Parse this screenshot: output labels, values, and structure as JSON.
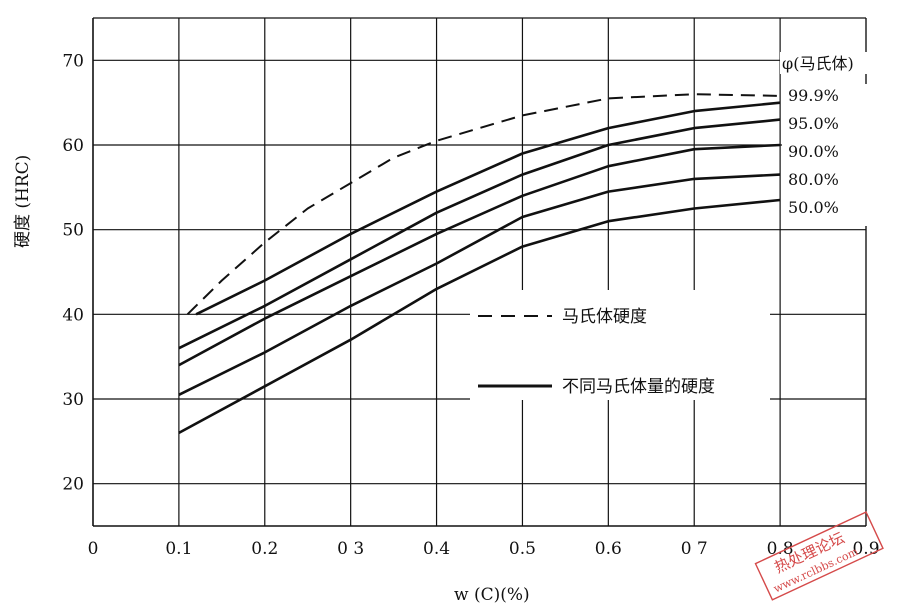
{
  "chart_data": {
    "type": "line",
    "xlabel": "w (C)(%)",
    "ylabel": "硬度 (HRC)",
    "xlim": [
      0,
      0.9
    ],
    "ylim": [
      15,
      75
    ],
    "xticks": [
      "0",
      "0.1",
      "0.2",
      "0 3",
      "0.4",
      "0.5",
      "0.6",
      "0 7",
      "0.8",
      "0.9"
    ],
    "yticks": [
      "20",
      "30",
      "40",
      "50",
      "60",
      "70"
    ],
    "grid": true,
    "legend_title": "φ(马氏体)",
    "legend": [
      {
        "label": "马氏体硬度",
        "style": "dashed"
      },
      {
        "label": "不同马氏体量的硬度",
        "style": "solid"
      }
    ],
    "series": [
      {
        "name": "99.9%",
        "style": "dashed",
        "x": [
          0.11,
          0.15,
          0.2,
          0.25,
          0.3,
          0.35,
          0.4,
          0.5,
          0.6,
          0.7,
          0.8
        ],
        "y": [
          40,
          44,
          48.5,
          52.5,
          55.5,
          58.5,
          60.5,
          63.5,
          65.5,
          66,
          65.8
        ]
      },
      {
        "name": "95.0%",
        "style": "solid",
        "x": [
          0.12,
          0.2,
          0.3,
          0.4,
          0.5,
          0.6,
          0.7,
          0.8
        ],
        "y": [
          40,
          44,
          49.5,
          54.5,
          59,
          62,
          64,
          65
        ]
      },
      {
        "name": "90.0%",
        "style": "solid",
        "x": [
          0.1,
          0.2,
          0.3,
          0.4,
          0.5,
          0.6,
          0.7,
          0.8
        ],
        "y": [
          36,
          41,
          46.5,
          52,
          56.5,
          60,
          62,
          63
        ]
      },
      {
        "name": "80.0%",
        "style": "solid",
        "x": [
          0.1,
          0.2,
          0.3,
          0.4,
          0.5,
          0.6,
          0.7,
          0.8
        ],
        "y": [
          34,
          39.5,
          44.5,
          49.5,
          54,
          57.5,
          59.5,
          60
        ]
      },
      {
        "name": "50.0%",
        "style": "solid",
        "x": [
          0.1,
          0.2,
          0.3,
          0.4,
          0.5,
          0.6,
          0.7,
          0.8
        ],
        "y": [
          30.5,
          35.5,
          41,
          46,
          51.5,
          54.5,
          56,
          56.5
        ]
      },
      {
        "name": "",
        "style": "solid",
        "x": [
          0.1,
          0.2,
          0.3,
          0.4,
          0.5,
          0.6,
          0.7,
          0.8
        ],
        "y": [
          26,
          31.5,
          37,
          43,
          48,
          51,
          52.5,
          53.5
        ]
      }
    ],
    "series_labels": [
      "99.9%",
      "95.0%",
      "90.0%",
      "80.0%",
      "50.0%"
    ]
  },
  "watermark": {
    "line1": "热处理论坛",
    "line2": "www.rclbbs.com"
  },
  "colors": {
    "ink": "#111111",
    "watermark": "#d54a4a"
  }
}
